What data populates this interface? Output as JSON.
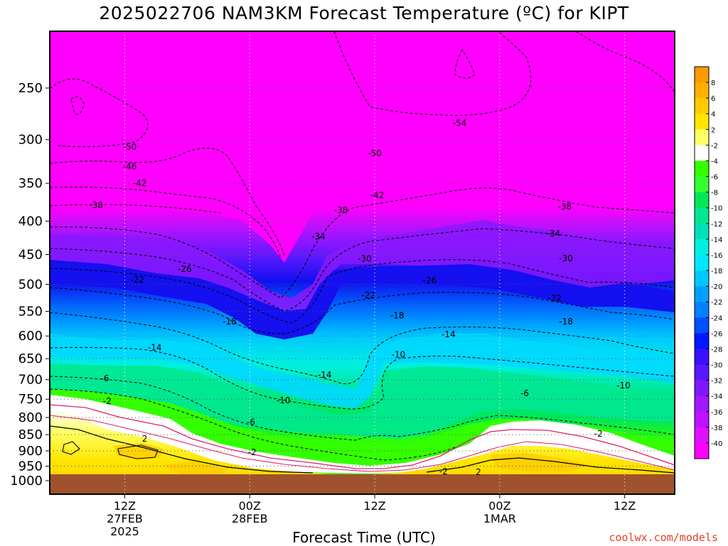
{
  "title": "2025022706 NAM3KM Forecast Temperature (ºC) for KIPT",
  "x_axis_title": "Forecast Time (UTC)",
  "credit": "coolwx.com/models",
  "chart_data": {
    "type": "heatmap",
    "title": "2025022706 NAM3KM Forecast Temperature (ºC) for KIPT",
    "xlabel": "Forecast Time (UTC)",
    "ylabel": "",
    "x_range_hours": [
      -6,
      44
    ],
    "y_levels_hPa": [
      250,
      300,
      350,
      400,
      450,
      500,
      550,
      600,
      650,
      700,
      750,
      800,
      850,
      900,
      950,
      1000
    ],
    "x_ticks": [
      {
        "hour": 0,
        "lines": [
          "12Z",
          "27FEB",
          "2025"
        ]
      },
      {
        "hour": 10,
        "lines": [
          "00Z",
          "28FEB"
        ]
      },
      {
        "hour": 20,
        "lines": [
          "12Z"
        ]
      },
      {
        "hour": 30,
        "lines": [
          "00Z",
          "1MAR"
        ]
      },
      {
        "hour": 40,
        "lines": [
          "12Z"
        ]
      }
    ],
    "contour_labels": [
      {
        "text": "-50",
        "hour": 0.4,
        "p": 308
      },
      {
        "text": "-46",
        "hour": 0.4,
        "p": 330
      },
      {
        "text": "-42",
        "hour": 1.2,
        "p": 350
      },
      {
        "text": "-38",
        "hour": -2.3,
        "p": 378
      },
      {
        "text": "-22",
        "hour": 1.0,
        "p": 492
      },
      {
        "text": "-26",
        "hour": 4.8,
        "p": 474
      },
      {
        "text": "-18",
        "hour": 8.4,
        "p": 570
      },
      {
        "text": "-14",
        "hour": 2.4,
        "p": 625
      },
      {
        "text": "-6",
        "hour": -1.6,
        "p": 697
      },
      {
        "text": "-2",
        "hour": -1.4,
        "p": 755
      },
      {
        "text": "2",
        "hour": 1.6,
        "p": 863
      },
      {
        "text": "-6",
        "hour": 10.1,
        "p": 813
      },
      {
        "text": "-10",
        "hour": 12.7,
        "p": 753
      },
      {
        "text": "-14",
        "hour": 16.0,
        "p": 688
      },
      {
        "text": "-2",
        "hour": 10.2,
        "p": 905
      },
      {
        "text": "-38",
        "hour": 17.3,
        "p": 385
      },
      {
        "text": "-34",
        "hour": 15.5,
        "p": 422
      },
      {
        "text": "-30",
        "hour": 19.2,
        "p": 457
      },
      {
        "text": "-22",
        "hour": 19.5,
        "p": 520
      },
      {
        "text": "-18",
        "hour": 21.8,
        "p": 558
      },
      {
        "text": "-10",
        "hour": 21.9,
        "p": 641
      },
      {
        "text": "-14",
        "hour": 25.9,
        "p": 597
      },
      {
        "text": "-26",
        "hour": 24.4,
        "p": 493
      },
      {
        "text": "-42",
        "hour": 20.2,
        "p": 365
      },
      {
        "text": "-50",
        "hour": 20.0,
        "p": 315
      },
      {
        "text": "-54",
        "hour": 26.8,
        "p": 283
      },
      {
        "text": "-2",
        "hour": 25.5,
        "p": 968
      },
      {
        "text": "2",
        "hour": 28.3,
        "p": 970
      },
      {
        "text": "-6",
        "hour": 32.0,
        "p": 735
      },
      {
        "text": "-38",
        "hour": 35.2,
        "p": 380
      },
      {
        "text": "-34",
        "hour": 34.3,
        "p": 418
      },
      {
        "text": "-30",
        "hour": 35.3,
        "p": 456
      },
      {
        "text": "-22",
        "hour": 34.4,
        "p": 525
      },
      {
        "text": "-18",
        "hour": 35.3,
        "p": 570
      },
      {
        "text": "-10",
        "hour": 39.9,
        "p": 715
      },
      {
        "text": "-2",
        "hour": 37.9,
        "p": 848
      }
    ],
    "colorbar": {
      "ticks": [
        "8",
        "6",
        "4",
        "2",
        "-2",
        "-4",
        "-6",
        "-8",
        "-10",
        "-12",
        "-14",
        "-16",
        "-18",
        "-20",
        "-22",
        "-24",
        "-26",
        "-28",
        "-30",
        "-32",
        "-34",
        "-36",
        "-38",
        "-40"
      ],
      "colors": [
        "#ff9900",
        "#ffb000",
        "#ffca00",
        "#ffe600",
        "#ffff66",
        "#ffffff",
        "#33ff00",
        "#33ff33",
        "#00e855",
        "#00e890",
        "#00e0b8",
        "#00f0e0",
        "#00e6ff",
        "#00c8ff",
        "#00a0ff",
        "#0080ff",
        "#0050ff",
        "#0018ff",
        "#3a10ff",
        "#5a18ff",
        "#8018ff",
        "#a018ff",
        "#c010ff",
        "#e010ff",
        "#ff00ff"
      ]
    },
    "colors": {
      "upper_air": "#ff00ff",
      "ground": "#a0522d",
      "freezing_line": "#e0206a",
      "contour": "#000000"
    }
  }
}
